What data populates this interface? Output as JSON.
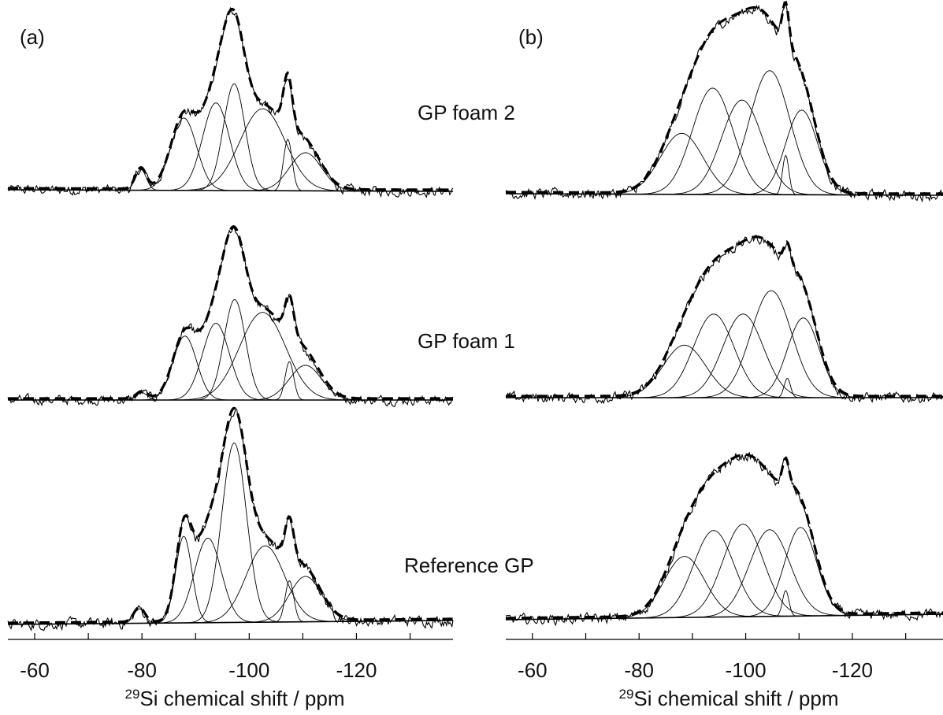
{
  "panel_labels": [
    "(a)",
    "(b)"
  ],
  "sample_labels": [
    "GP foam 2",
    "GP foam 1",
    "Reference GP"
  ],
  "chart_data": [
    {
      "panel": "(a)",
      "type": "line",
      "xlabel_sup": "29",
      "xlabel": "Si chemical shift / ppm",
      "xlim": [
        -55,
        -138
      ],
      "xticks": [
        -60,
        -70,
        -80,
        -90,
        -100,
        -110,
        -120,
        -130
      ],
      "xtick_labels": [
        [
          "-60",
          -60
        ],
        [
          "-80",
          -80
        ],
        [
          "-100",
          -100
        ],
        [
          "-120",
          -120
        ]
      ],
      "grid": false,
      "spectra": [
        {
          "sample": "GP foam 2",
          "components": [
            {
              "center": -79.8,
              "height": 0.11,
              "width": 1.0
            },
            {
              "center": -87.8,
              "height": 0.38,
              "width": 2.4
            },
            {
              "center": -93.8,
              "height": 0.46,
              "width": 2.5
            },
            {
              "center": -97.2,
              "height": 0.56,
              "width": 2.0
            },
            {
              "center": -102.5,
              "height": 0.43,
              "width": 4.2
            },
            {
              "center": -107.2,
              "height": 0.27,
              "width": 0.8
            },
            {
              "center": -110.5,
              "height": 0.2,
              "width": 3.0
            }
          ]
        },
        {
          "sample": "GP foam 1",
          "components": [
            {
              "center": -80.0,
              "height": 0.04,
              "width": 1.0
            },
            {
              "center": -88.0,
              "height": 0.35,
              "width": 2.2
            },
            {
              "center": -93.8,
              "height": 0.42,
              "width": 2.5
            },
            {
              "center": -97.3,
              "height": 0.55,
              "width": 2.0
            },
            {
              "center": -102.5,
              "height": 0.48,
              "width": 4.3
            },
            {
              "center": -107.5,
              "height": 0.21,
              "width": 0.8
            },
            {
              "center": -110.5,
              "height": 0.19,
              "width": 3.0
            }
          ]
        },
        {
          "sample": "Reference GP",
          "components": [
            {
              "center": -79.5,
              "height": 0.07,
              "width": 1.0
            },
            {
              "center": -87.8,
              "height": 0.42,
              "width": 1.5
            },
            {
              "center": -92.3,
              "height": 0.41,
              "width": 2.5
            },
            {
              "center": -97.2,
              "height": 0.87,
              "width": 2.3
            },
            {
              "center": -103.0,
              "height": 0.37,
              "width": 3.6
            },
            {
              "center": -107.5,
              "height": 0.2,
              "width": 0.8
            },
            {
              "center": -110.5,
              "height": 0.22,
              "width": 3.0
            }
          ]
        }
      ]
    },
    {
      "panel": "(b)",
      "type": "line",
      "xlabel_sup": "29",
      "xlabel": "Si chemical shift / ppm",
      "xlim": [
        -55,
        -137
      ],
      "xticks": [
        -60,
        -70,
        -80,
        -90,
        -100,
        -110,
        -120,
        -130
      ],
      "xtick_labels": [
        [
          "-60",
          -60
        ],
        [
          "-80",
          -80
        ],
        [
          "-100",
          -100
        ],
        [
          "-120",
          -120
        ]
      ],
      "grid": false,
      "spectra": [
        {
          "sample": "GP foam 2",
          "components": [
            {
              "center": -88.0,
              "height": 0.31,
              "width": 4.0
            },
            {
              "center": -93.8,
              "height": 0.54,
              "width": 3.8
            },
            {
              "center": -99.3,
              "height": 0.48,
              "width": 3.8
            },
            {
              "center": -104.5,
              "height": 0.63,
              "width": 3.8
            },
            {
              "center": -107.5,
              "height": 0.2,
              "width": 0.6
            },
            {
              "center": -110.5,
              "height": 0.43,
              "width": 3.0
            }
          ]
        },
        {
          "sample": "GP foam 1",
          "components": [
            {
              "center": -88.5,
              "height": 0.27,
              "width": 4.0
            },
            {
              "center": -94.0,
              "height": 0.43,
              "width": 3.8
            },
            {
              "center": -99.5,
              "height": 0.43,
              "width": 3.8
            },
            {
              "center": -104.8,
              "height": 0.55,
              "width": 3.8
            },
            {
              "center": -107.8,
              "height": 0.1,
              "width": 0.6
            },
            {
              "center": -110.8,
              "height": 0.41,
              "width": 3.0
            }
          ]
        },
        {
          "sample": "Reference GP",
          "components": [
            {
              "center": -88.5,
              "height": 0.31,
              "width": 3.8
            },
            {
              "center": -94.0,
              "height": 0.44,
              "width": 3.8
            },
            {
              "center": -99.5,
              "height": 0.47,
              "width": 3.8
            },
            {
              "center": -104.5,
              "height": 0.44,
              "width": 3.8
            },
            {
              "center": -107.5,
              "height": 0.13,
              "width": 0.6
            },
            {
              "center": -110.3,
              "height": 0.45,
              "width": 3.0
            }
          ]
        }
      ]
    }
  ]
}
